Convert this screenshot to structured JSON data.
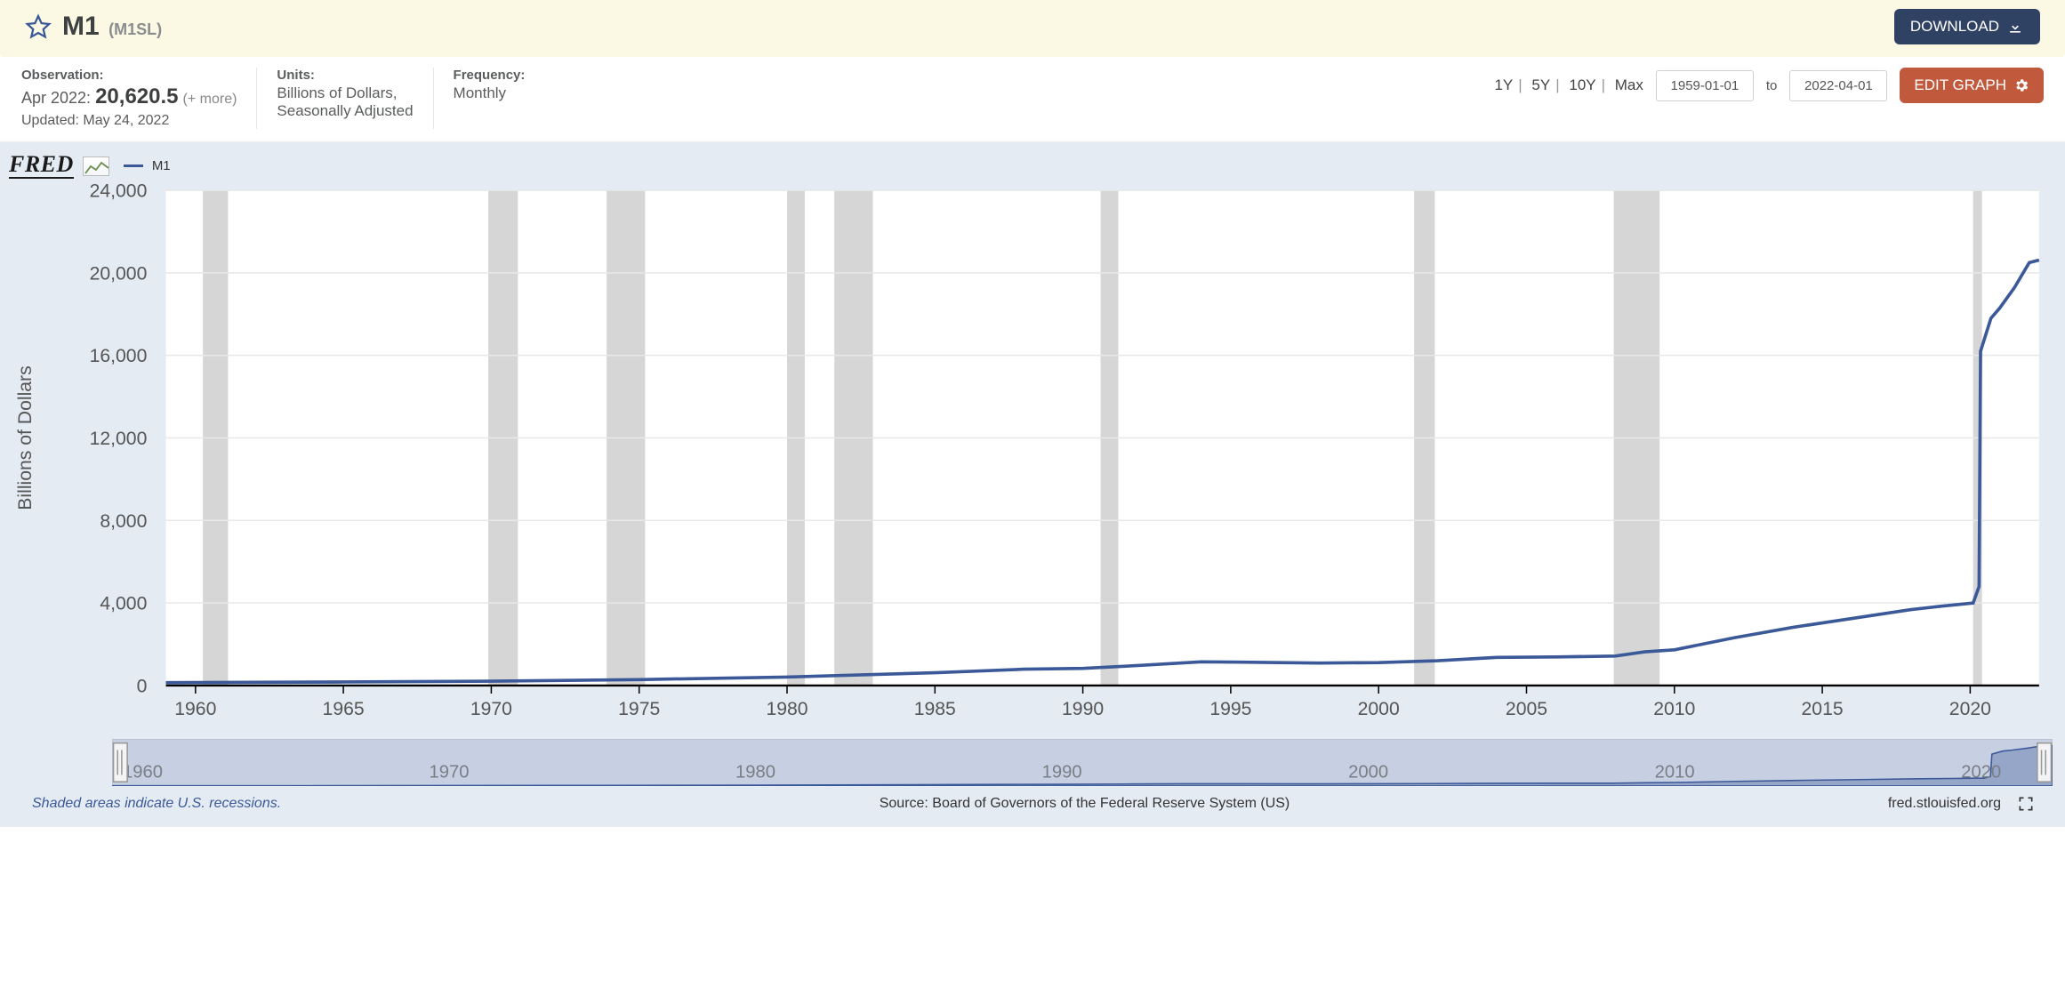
{
  "title": {
    "name": "M1",
    "code": "(M1SL)"
  },
  "download_label": "DOWNLOAD",
  "observation": {
    "label": "Observation:",
    "date": "Apr 2022:",
    "value": "20,620.5",
    "more": "(+ more)",
    "updated": "Updated: May 24, 2022"
  },
  "units": {
    "label": "Units:",
    "line1": "Billions of Dollars,",
    "line2": "Seasonally Adjusted"
  },
  "frequency": {
    "label": "Frequency:",
    "value": "Monthly"
  },
  "ranges": {
    "r1": "1Y",
    "r5": "5Y",
    "r10": "10Y",
    "rmax": "Max"
  },
  "date_from": "1959-01-01",
  "date_to": "2022-04-01",
  "to_label": "to",
  "edit_label": "EDIT GRAPH",
  "legend": {
    "series": "M1",
    "logo": "FRED"
  },
  "chart": {
    "type": "line",
    "ylabel": "Billions of Dollars",
    "ylim": [
      0,
      24000
    ],
    "yticks": [
      0,
      4000,
      8000,
      12000,
      16000,
      20000,
      24000
    ],
    "ytick_labels": [
      "0",
      "4,000",
      "8,000",
      "12,000",
      "16,000",
      "20,000",
      "24,000"
    ],
    "xlim": [
      1959,
      2022.33
    ],
    "xticks": [
      1960,
      1965,
      1970,
      1975,
      1980,
      1985,
      1990,
      1995,
      2000,
      2005,
      2010,
      2015,
      2020
    ],
    "line_color": "#3b5998",
    "line_width": 2.4,
    "grid_color": "#e8e8e8",
    "axis_color": "#000000",
    "plot_background": "#ffffff",
    "outer_background": "#e5ebf3",
    "recession_color": "#d6d6d6",
    "recessions": [
      [
        1960.25,
        1961.1
      ],
      [
        1969.9,
        1970.9
      ],
      [
        1973.9,
        1975.2
      ],
      [
        1980.0,
        1980.6
      ],
      [
        1981.6,
        1982.9
      ],
      [
        1990.6,
        1991.2
      ],
      [
        2001.2,
        2001.9
      ],
      [
        2007.95,
        2009.5
      ],
      [
        2020.1,
        2020.4
      ]
    ],
    "series": [
      [
        1959,
        140
      ],
      [
        1965,
        170
      ],
      [
        1970,
        210
      ],
      [
        1975,
        290
      ],
      [
        1980,
        410
      ],
      [
        1985,
        620
      ],
      [
        1988,
        790
      ],
      [
        1990,
        830
      ],
      [
        1992,
        980
      ],
      [
        1994,
        1150
      ],
      [
        1996,
        1120
      ],
      [
        1998,
        1090
      ],
      [
        2000,
        1110
      ],
      [
        2002,
        1200
      ],
      [
        2004,
        1360
      ],
      [
        2006,
        1380
      ],
      [
        2008,
        1430
      ],
      [
        2009,
        1630
      ],
      [
        2010,
        1730
      ],
      [
        2012,
        2310
      ],
      [
        2014,
        2820
      ],
      [
        2016,
        3250
      ],
      [
        2018,
        3680
      ],
      [
        2019,
        3840
      ],
      [
        2020.1,
        4000
      ],
      [
        2020.3,
        4800
      ],
      [
        2020.35,
        16200
      ],
      [
        2020.7,
        17800
      ],
      [
        2021.0,
        18300
      ],
      [
        2021.5,
        19300
      ],
      [
        2022.0,
        20500
      ],
      [
        2022.33,
        20620
      ]
    ]
  },
  "navigator": {
    "ticks": [
      1960,
      1970,
      1980,
      1990,
      2000,
      2010,
      2020
    ],
    "fill_color": "#aeb9d4",
    "grip_color": "#f4f4f4"
  },
  "footer": {
    "note": "Shaded areas indicate U.S. recessions.",
    "source": "Source: Board of Governors of the Federal Reserve System (US)",
    "url": "fred.stlouisfed.org"
  }
}
